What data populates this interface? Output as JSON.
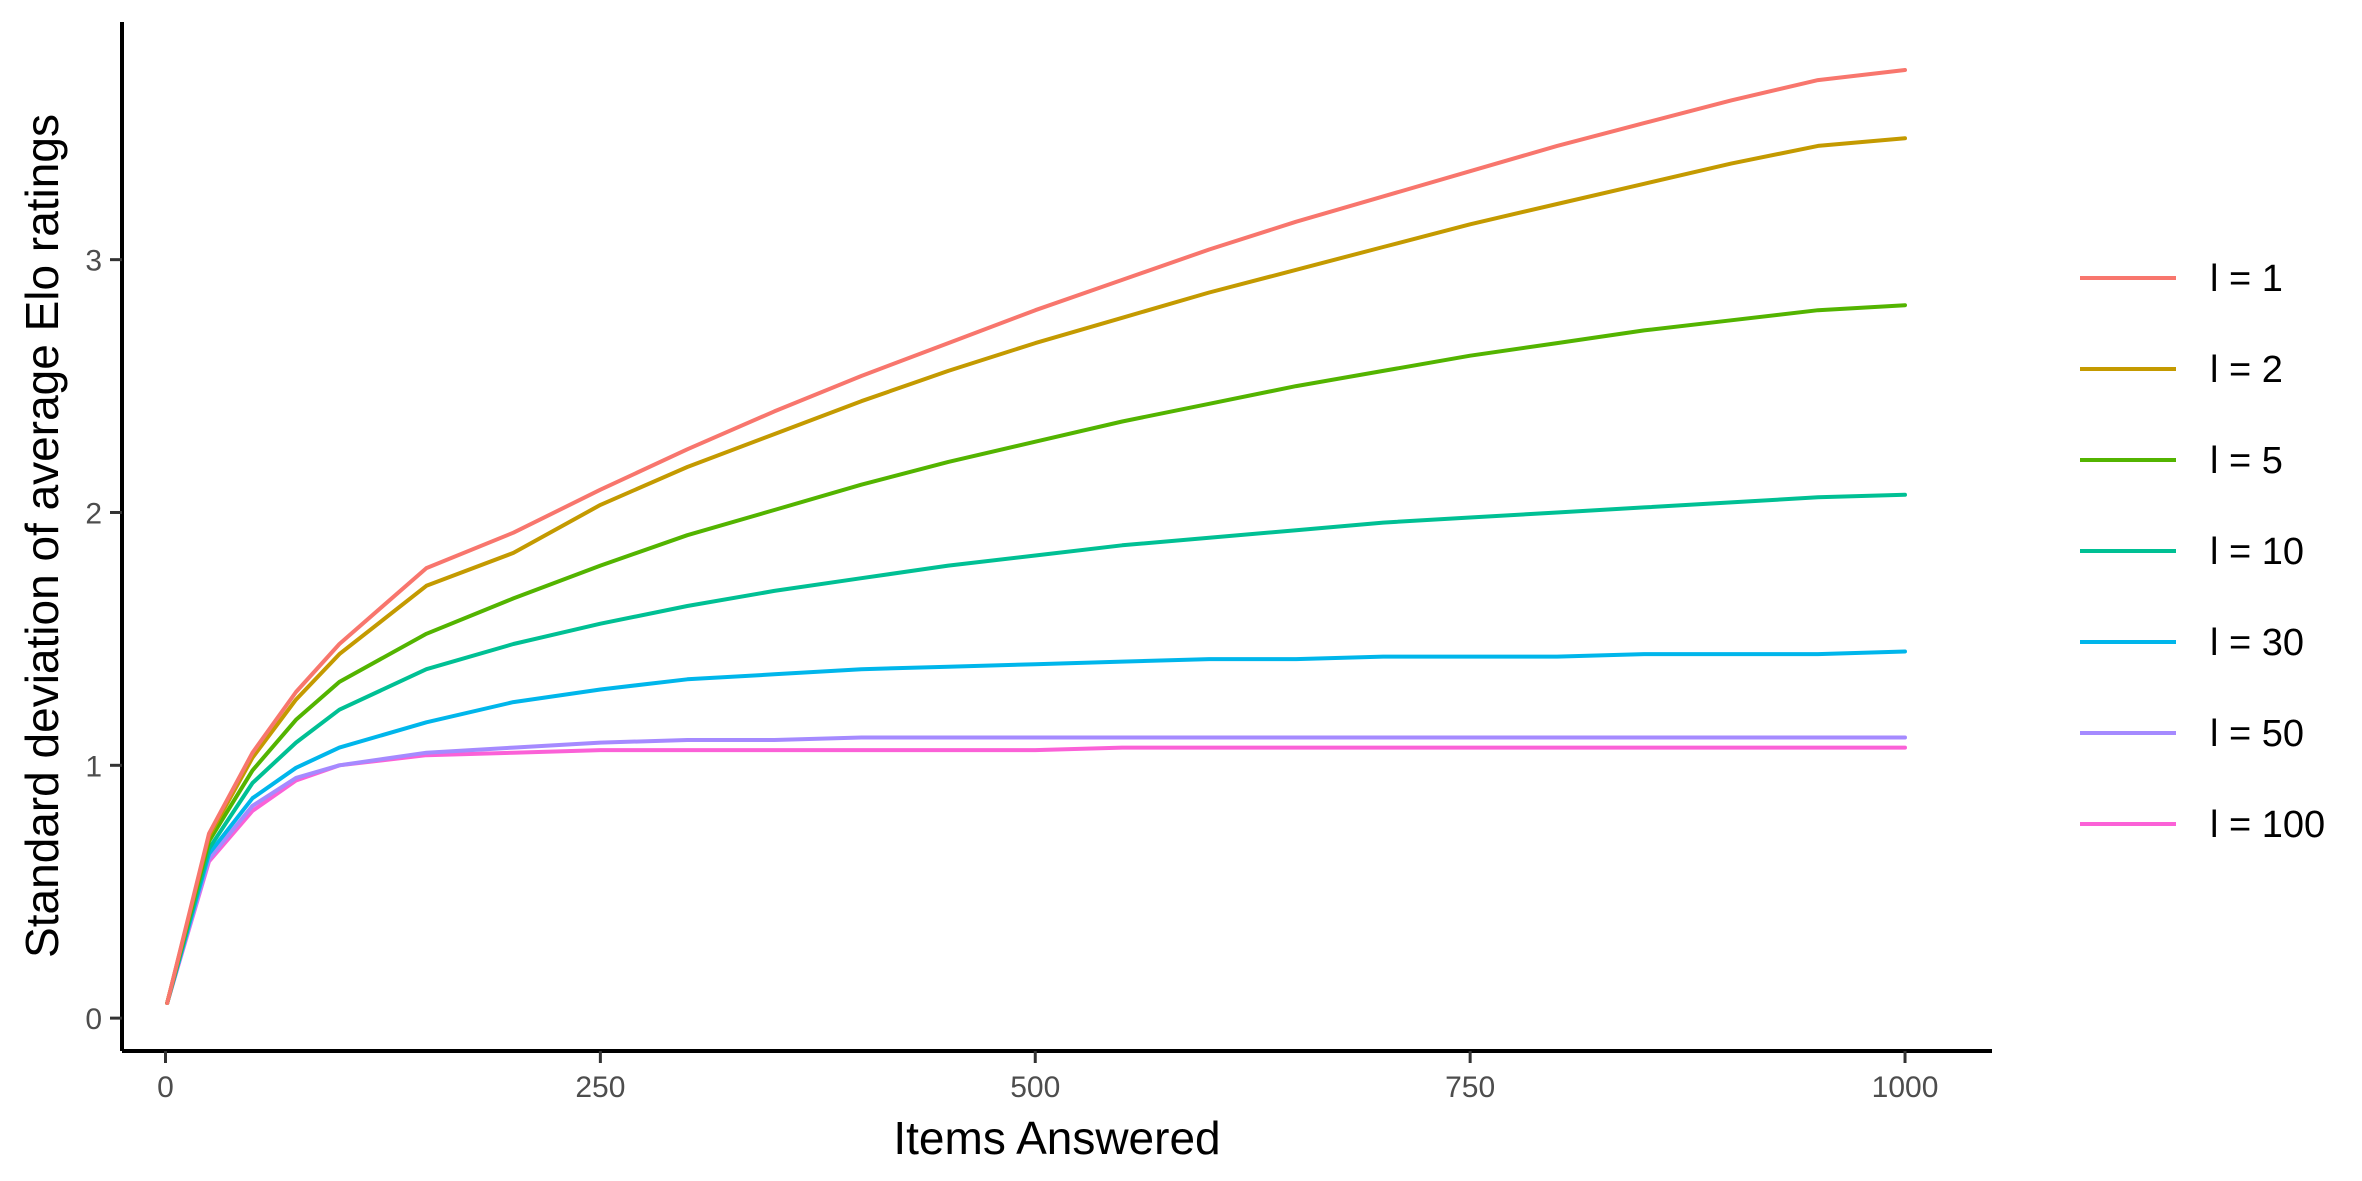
{
  "chart_data": {
    "type": "line",
    "title": "",
    "xlabel": "Items Answered",
    "ylabel": "Standard deviation of average Elo ratings",
    "xlim": [
      -25,
      1050
    ],
    "ylim": [
      -0.13,
      3.94
    ],
    "xticks": [
      0,
      250,
      500,
      750,
      1000
    ],
    "yticks": [
      0,
      1,
      2,
      3
    ],
    "grid": false,
    "legend_position": "right",
    "x": [
      1,
      25,
      50,
      75,
      100,
      150,
      200,
      250,
      300,
      350,
      400,
      450,
      500,
      550,
      600,
      650,
      700,
      750,
      800,
      850,
      900,
      950,
      1000
    ],
    "series": [
      {
        "name": "l = 1",
        "color": "#F8766D",
        "values": [
          0.06,
          0.73,
          1.05,
          1.29,
          1.48,
          1.78,
          1.92,
          2.09,
          2.25,
          2.4,
          2.54,
          2.67,
          2.8,
          2.92,
          3.04,
          3.15,
          3.25,
          3.35,
          3.45,
          3.54,
          3.63,
          3.71,
          3.75
        ]
      },
      {
        "name": "l = 2",
        "color": "#C49A00",
        "values": [
          0.06,
          0.72,
          1.03,
          1.26,
          1.44,
          1.71,
          1.84,
          2.03,
          2.18,
          2.31,
          2.44,
          2.56,
          2.67,
          2.77,
          2.87,
          2.96,
          3.05,
          3.14,
          3.22,
          3.3,
          3.38,
          3.45,
          3.48
        ]
      },
      {
        "name": "l = 5",
        "color": "#53B400",
        "values": [
          0.06,
          0.7,
          0.98,
          1.18,
          1.33,
          1.52,
          1.66,
          1.79,
          1.91,
          2.01,
          2.11,
          2.2,
          2.28,
          2.36,
          2.43,
          2.5,
          2.56,
          2.62,
          2.67,
          2.72,
          2.76,
          2.8,
          2.82
        ]
      },
      {
        "name": "l = 10",
        "color": "#00C094",
        "values": [
          0.06,
          0.67,
          0.93,
          1.09,
          1.22,
          1.38,
          1.48,
          1.56,
          1.63,
          1.69,
          1.74,
          1.79,
          1.83,
          1.87,
          1.9,
          1.93,
          1.96,
          1.98,
          2.0,
          2.02,
          2.04,
          2.06,
          2.07
        ]
      },
      {
        "name": "l = 30",
        "color": "#00B6EB",
        "values": [
          0.06,
          0.65,
          0.87,
          0.99,
          1.07,
          1.17,
          1.25,
          1.3,
          1.34,
          1.36,
          1.38,
          1.39,
          1.4,
          1.41,
          1.42,
          1.42,
          1.43,
          1.43,
          1.43,
          1.44,
          1.44,
          1.44,
          1.45
        ]
      },
      {
        "name": "l = 50",
        "color": "#A58AFF",
        "values": [
          0.06,
          0.63,
          0.84,
          0.95,
          1.0,
          1.05,
          1.07,
          1.09,
          1.1,
          1.1,
          1.11,
          1.11,
          1.11,
          1.11,
          1.11,
          1.11,
          1.11,
          1.11,
          1.11,
          1.11,
          1.11,
          1.11,
          1.11
        ]
      },
      {
        "name": "l = 100",
        "color": "#FB61D7",
        "values": [
          0.06,
          0.62,
          0.82,
          0.94,
          1.0,
          1.04,
          1.05,
          1.06,
          1.06,
          1.06,
          1.06,
          1.06,
          1.06,
          1.07,
          1.07,
          1.07,
          1.07,
          1.07,
          1.07,
          1.07,
          1.07,
          1.07,
          1.07
        ]
      }
    ]
  }
}
